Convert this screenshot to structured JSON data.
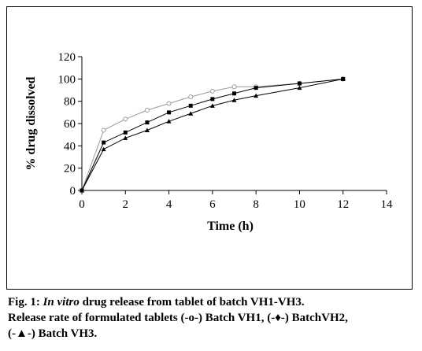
{
  "chart_data": {
    "type": "line",
    "xlabel": "Time (h)",
    "ylabel": "% drug dissolved",
    "xlim": [
      0,
      14
    ],
    "ylim": [
      0,
      120
    ],
    "xticks": [
      0,
      2,
      4,
      6,
      8,
      10,
      12,
      14
    ],
    "yticks": [
      0,
      20,
      40,
      60,
      80,
      100,
      120
    ],
    "grid": false,
    "legend": "none",
    "x": [
      0,
      1,
      2,
      3,
      4,
      5,
      6,
      7,
      8,
      10,
      12
    ],
    "series": [
      {
        "name": "Batch VH1",
        "marker": "circle",
        "color": "#999999",
        "values": [
          0,
          54,
          64,
          72,
          78,
          84,
          89,
          93,
          93,
          96,
          100
        ]
      },
      {
        "name": "BatchVH2",
        "marker": "diamond",
        "color": "#000000",
        "values": [
          0,
          43,
          52,
          61,
          70,
          76,
          82,
          87,
          92,
          96,
          100
        ]
      },
      {
        "name": "Batch VH3",
        "marker": "triangle",
        "color": "#000000",
        "values": [
          0,
          37,
          47,
          54,
          62,
          69,
          76,
          81,
          85,
          92,
          100
        ]
      }
    ]
  },
  "caption": {
    "fig_label": "Fig. 1:",
    "italic": "In vitro",
    "line1_rest": "drug release from tablet of batch VH1-VH3.",
    "line2": "Release rate of formulated tablets (-o-) Batch VH1, (-♦-) BatchVH2,",
    "line3": "(-▲-) Batch VH3."
  }
}
